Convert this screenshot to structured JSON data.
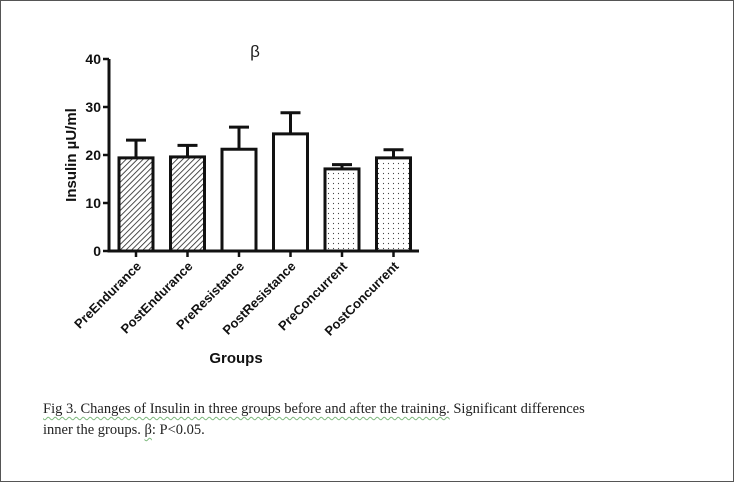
{
  "chart_data": {
    "type": "bar",
    "title": "β",
    "xlabel": "Groups",
    "ylabel": "Insulin µU/ml",
    "ylim": [
      0,
      40
    ],
    "yticks": [
      0,
      10,
      20,
      30,
      40
    ],
    "grid": false,
    "categories": [
      "PreEndurance",
      "PostEndurance",
      "PreResistance",
      "PostResistance",
      "PreConcurrent",
      "PostConcurrent"
    ],
    "values": [
      19.4,
      19.6,
      21.2,
      24.4,
      17.1,
      19.4
    ],
    "error_upper": [
      23.1,
      22.0,
      25.8,
      28.8,
      18.0,
      21.1
    ],
    "patterns": [
      "hatch",
      "hatch",
      "none",
      "none",
      "dots",
      "dots"
    ]
  },
  "caption": {
    "underlined": "Fig 3. Changes of Insulin in three groups before and after the training.",
    "rest_line1": " Significant  differences",
    "line2_a": "inner the groups. ",
    "line2_beta": "β",
    "line2_b": ": P<0.05."
  }
}
